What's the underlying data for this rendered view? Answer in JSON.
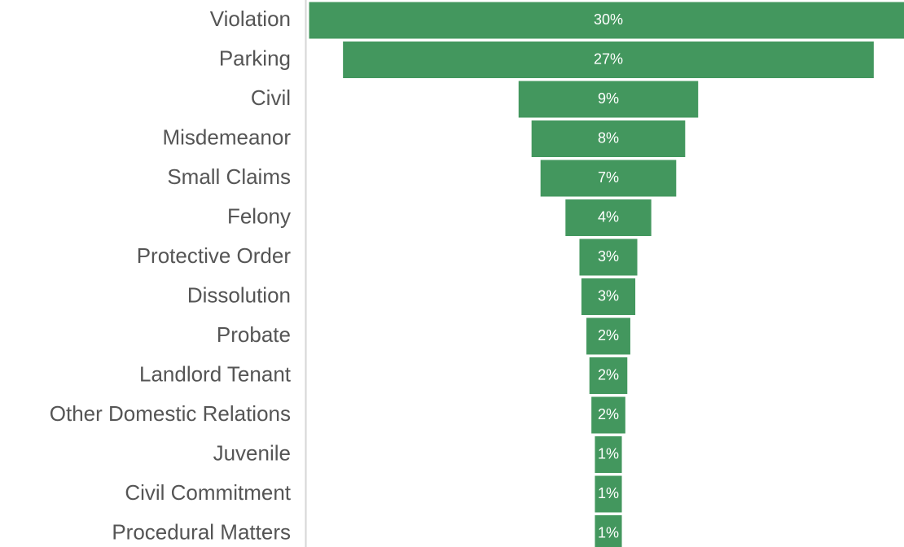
{
  "chart_data": {
    "type": "funnel",
    "categories": [
      "Violation",
      "Parking",
      "Civil",
      "Misdemeanor",
      "Small Claims",
      "Felony",
      "Protective Order",
      "Dissolution",
      "Probate",
      "Landlord Tenant",
      "Other Domestic Relations",
      "Juvenile",
      "Civil Commitment",
      "Procedural Matters"
    ],
    "values": [
      30,
      26.6,
      9.0,
      7.7,
      6.8,
      4.3,
      2.9,
      2.7,
      2.2,
      1.9,
      1.7,
      1.35,
      1.35,
      1.35
    ],
    "value_labels": [
      "30%",
      "27%",
      "9%",
      "8%",
      "7%",
      "4%",
      "3%",
      "3%",
      "2%",
      "2%",
      "2%",
      "1%",
      "1%",
      "1%"
    ],
    "color": "#43975e"
  }
}
